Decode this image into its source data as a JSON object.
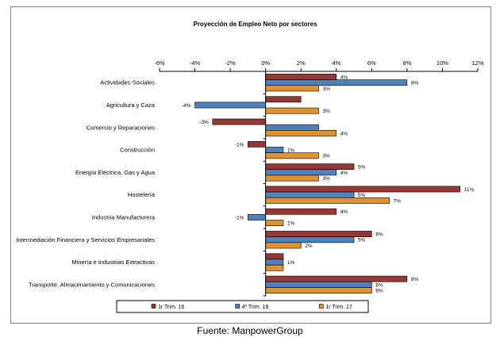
{
  "chart_data": {
    "type": "bar",
    "orientation": "horizontal",
    "title": "Proyección de Empleo Neto por sectores",
    "categories": [
      "Actividades Sociales",
      "Agricultura y Caza",
      "Comercio y Reparaciones",
      "Construcción",
      "Energía Eléctrica, Gas y  Agua",
      "Hostelería",
      "Industria Manufacturera",
      "Intermediación Financiera y Servicios Empresariales",
      "Minería e Industrias Extractivas",
      "Transporte, Almacenamiento y Comunicaciones"
    ],
    "series": [
      {
        "name": "1r Trim. 16",
        "color": "#953735",
        "values": [
          4,
          2,
          -3,
          -1,
          5,
          11,
          4,
          6,
          1,
          8
        ],
        "labels": [
          "4%",
          "",
          "-3%",
          "-1%",
          "5%",
          "11%",
          "4%",
          "6%",
          "",
          "8%"
        ]
      },
      {
        "name": "4º Trim. 16",
        "color": "#4f81bd",
        "values": [
          8,
          -4,
          3,
          1,
          4,
          5,
          -1,
          5,
          1,
          6
        ],
        "labels": [
          "8%",
          "-4%",
          "",
          "1%",
          "4%",
          "5%",
          "-1%",
          "5%",
          "1%",
          "6%"
        ]
      },
      {
        "name": "1r Trim. 17",
        "color": "#e0922f",
        "values": [
          3,
          3,
          4,
          3,
          3,
          7,
          1,
          2,
          1,
          6
        ],
        "labels": [
          "3%",
          "3%",
          "4%",
          "3%",
          "3%",
          "7%",
          "1%",
          "2%",
          "",
          "6%"
        ]
      }
    ],
    "xlim": [
      -6,
      12
    ],
    "xticks": [
      -6,
      -4,
      -2,
      0,
      2,
      4,
      6,
      8,
      10,
      12
    ],
    "xtick_labels": [
      "-6%",
      "-4%",
      "-2%",
      "0%",
      "2%",
      "4%",
      "6%",
      "8%",
      "10%",
      "12%"
    ],
    "grid": false,
    "legend_position": "bottom"
  },
  "source": "Fuente: ManpowerGroup"
}
